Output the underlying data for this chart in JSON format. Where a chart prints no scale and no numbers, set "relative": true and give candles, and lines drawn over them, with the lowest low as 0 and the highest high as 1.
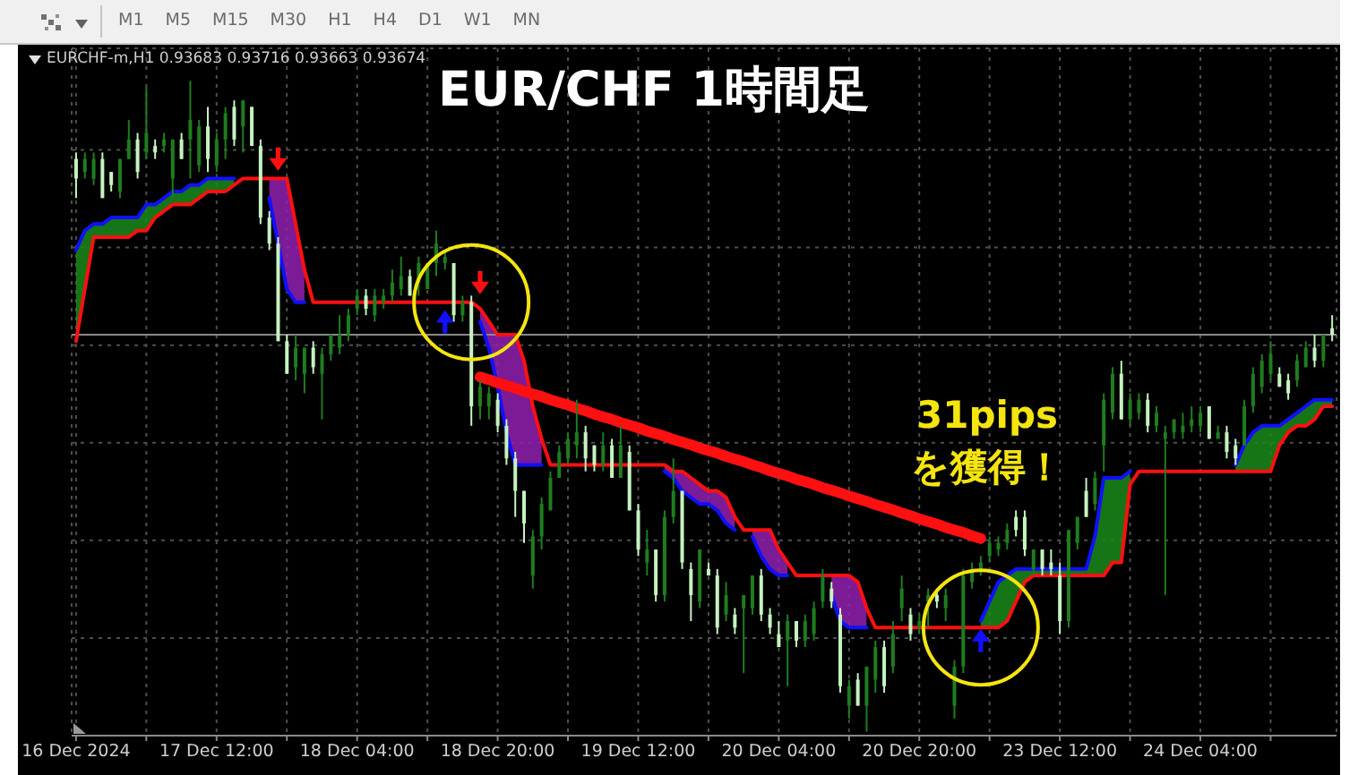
{
  "chart_data": {
    "type": "candlestick",
    "title": "EUR/CHF 1時間足",
    "subtitle": "EURCHF-m,H1 0.93683 0.93716 0.93663 0.93674",
    "relative": true,
    "grid": true,
    "categories": [
      "16 Dec 2024",
      null,
      null,
      null,
      null,
      null,
      null,
      null,
      null,
      null,
      null,
      null,
      null,
      null,
      null,
      null,
      "17 Dec 12:00",
      null,
      null,
      null,
      null,
      null,
      null,
      null,
      null,
      null,
      null,
      null,
      null,
      null,
      null,
      null,
      "18 Dec 04:00",
      null,
      null,
      null,
      null,
      null,
      null,
      null,
      null,
      null,
      null,
      null,
      null,
      null,
      null,
      null,
      "18 Dec 20:00",
      null,
      null,
      null,
      null,
      null,
      null,
      null,
      null,
      null,
      null,
      null,
      null,
      null,
      null,
      null,
      "19 Dec 12:00",
      null,
      null,
      null,
      null,
      null,
      null,
      null,
      null,
      null,
      null,
      null,
      null,
      null,
      null,
      null,
      "20 Dec 04:00",
      null,
      null,
      null,
      null,
      null,
      null,
      null,
      null,
      null,
      null,
      null,
      null,
      null,
      null,
      null,
      "20 Dec 20:00",
      null,
      null,
      null,
      null,
      null,
      null,
      null,
      null,
      null,
      null,
      null,
      null,
      null,
      null,
      null,
      "23 Dec 12:00",
      null,
      null,
      null,
      null,
      null,
      null,
      null,
      null,
      null,
      null,
      null,
      null,
      null,
      null,
      null,
      "24 Dec 04:00",
      null,
      null,
      null,
      null,
      null,
      null,
      null,
      null,
      null,
      null,
      null,
      null,
      null,
      null,
      null
    ],
    "ohlc": [
      [
        0.88,
        0.89,
        0.82,
        0.85
      ],
      [
        0.86,
        0.89,
        0.85,
        0.88
      ],
      [
        0.85,
        0.89,
        0.84,
        0.88
      ],
      [
        0.88,
        0.89,
        0.82,
        0.82
      ],
      [
        0.86,
        0.86,
        0.83,
        0.84
      ],
      [
        0.83,
        0.88,
        0.82,
        0.88
      ],
      [
        0.88,
        0.94,
        0.88,
        0.91
      ],
      [
        0.91,
        0.92,
        0.85,
        0.86
      ],
      [
        0.89,
        0.99,
        0.88,
        0.92
      ],
      [
        0.9,
        0.91,
        0.88,
        0.89
      ],
      [
        0.9,
        0.92,
        0.89,
        0.91
      ],
      [
        0.85,
        0.91,
        0.82,
        0.91
      ],
      [
        0.91,
        0.92,
        0.88,
        0.88
      ],
      [
        0.91,
        1.0,
        0.85,
        0.94
      ],
      [
        0.87,
        0.94,
        0.86,
        0.93
      ],
      [
        0.93,
        0.96,
        0.86,
        0.88
      ],
      [
        0.87,
        0.92,
        0.86,
        0.91
      ],
      [
        0.91,
        0.96,
        0.88,
        0.95
      ],
      [
        0.96,
        0.97,
        0.9,
        0.91
      ],
      [
        0.93,
        0.97,
        0.89,
        0.97
      ],
      [
        0.96,
        0.96,
        0.9,
        0.9
      ],
      [
        0.9,
        0.91,
        0.78,
        0.79
      ],
      [
        0.79,
        0.8,
        0.74,
        0.75
      ],
      [
        0.75,
        0.76,
        0.6,
        0.6
      ],
      [
        0.6,
        0.61,
        0.55,
        0.55
      ],
      [
        0.56,
        0.61,
        0.54,
        0.59
      ],
      [
        0.55,
        0.59,
        0.52,
        0.59
      ],
      [
        0.59,
        0.6,
        0.55,
        0.56
      ],
      [
        0.55,
        0.59,
        0.48,
        0.58
      ],
      [
        0.58,
        0.61,
        0.57,
        0.61
      ],
      [
        0.59,
        0.64,
        0.58,
        0.61
      ],
      [
        0.61,
        0.65,
        0.6,
        0.64
      ],
      [
        0.65,
        0.68,
        0.64,
        0.67
      ],
      [
        0.67,
        0.68,
        0.64,
        0.65
      ],
      [
        0.64,
        0.68,
        0.63,
        0.67
      ],
      [
        0.66,
        0.68,
        0.65,
        0.67
      ],
      [
        0.67,
        0.71,
        0.66,
        0.69
      ],
      [
        0.68,
        0.73,
        0.67,
        0.7
      ],
      [
        0.7,
        0.71,
        0.67,
        0.67
      ],
      [
        0.69,
        0.73,
        0.67,
        0.72
      ],
      [
        0.68,
        0.72,
        0.68,
        0.72
      ],
      [
        0.72,
        0.77,
        0.7,
        0.75
      ],
      [
        0.72,
        0.74,
        0.71,
        0.73
      ],
      [
        0.72,
        0.72,
        0.63,
        0.64
      ],
      [
        0.64,
        0.67,
        0.63,
        0.66
      ],
      [
        0.66,
        0.67,
        0.47,
        0.5
      ],
      [
        0.5,
        0.54,
        0.48,
        0.53
      ],
      [
        0.5,
        0.53,
        0.48,
        0.52
      ],
      [
        0.51,
        0.52,
        0.46,
        0.47
      ],
      [
        0.47,
        0.48,
        0.41,
        0.42
      ],
      [
        0.42,
        0.43,
        0.33,
        0.37
      ],
      [
        0.37,
        0.37,
        0.29,
        0.32
      ],
      [
        0.24,
        0.31,
        0.22,
        0.3
      ],
      [
        0.3,
        0.36,
        0.28,
        0.35
      ],
      [
        0.34,
        0.4,
        0.34,
        0.39
      ],
      [
        0.39,
        0.44,
        0.39,
        0.43
      ],
      [
        0.42,
        0.46,
        0.41,
        0.45
      ],
      [
        0.44,
        0.51,
        0.42,
        0.46
      ],
      [
        0.46,
        0.47,
        0.4,
        0.42
      ],
      [
        0.44,
        0.44,
        0.4,
        0.41
      ],
      [
        0.41,
        0.46,
        0.4,
        0.44
      ],
      [
        0.44,
        0.45,
        0.39,
        0.39
      ],
      [
        0.39,
        0.47,
        0.39,
        0.44
      ],
      [
        0.43,
        0.44,
        0.34,
        0.34
      ],
      [
        0.34,
        0.35,
        0.27,
        0.28
      ],
      [
        0.26,
        0.31,
        0.24,
        0.28
      ],
      [
        0.28,
        0.28,
        0.2,
        0.21
      ],
      [
        0.21,
        0.34,
        0.2,
        0.33
      ],
      [
        0.33,
        0.42,
        0.32,
        0.37
      ],
      [
        0.37,
        0.37,
        0.25,
        0.26
      ],
      [
        0.25,
        0.26,
        0.17,
        0.21
      ],
      [
        0.2,
        0.28,
        0.19,
        0.28
      ],
      [
        0.25,
        0.26,
        0.24,
        0.24
      ],
      [
        0.24,
        0.25,
        0.15,
        0.16
      ],
      [
        0.18,
        0.23,
        0.17,
        0.21
      ],
      [
        0.18,
        0.19,
        0.15,
        0.16
      ],
      [
        0.19,
        0.21,
        0.09,
        0.21
      ],
      [
        0.19,
        0.24,
        0.18,
        0.24
      ],
      [
        0.24,
        0.25,
        0.17,
        0.18
      ],
      [
        0.18,
        0.19,
        0.15,
        0.16
      ],
      [
        0.15,
        0.17,
        0.13,
        0.13
      ],
      [
        0.14,
        0.18,
        0.07,
        0.17
      ],
      [
        0.17,
        0.17,
        0.13,
        0.14
      ],
      [
        0.14,
        0.18,
        0.13,
        0.17
      ],
      [
        0.15,
        0.2,
        0.14,
        0.19
      ],
      [
        0.2,
        0.25,
        0.19,
        0.24
      ],
      [
        0.22,
        0.23,
        0.19,
        0.2
      ],
      [
        0.18,
        0.19,
        0.06,
        0.07
      ],
      [
        0.04,
        0.08,
        0.02,
        0.07
      ],
      [
        0.08,
        0.09,
        0.04,
        0.04
      ],
      [
        0.04,
        0.1,
        0.0,
        0.1
      ],
      [
        0.08,
        0.14,
        0.06,
        0.13
      ],
      [
        0.13,
        0.14,
        0.06,
        0.07
      ],
      [
        0.1,
        0.17,
        0.09,
        0.15
      ],
      [
        0.19,
        0.24,
        0.17,
        0.22
      ],
      [
        0.18,
        0.19,
        0.14,
        0.15
      ],
      [
        0.16,
        0.18,
        0.15,
        0.17
      ],
      [
        0.2,
        0.22,
        0.16,
        0.21
      ],
      [
        0.21,
        0.22,
        0.19,
        0.2
      ],
      [
        0.19,
        0.22,
        0.17,
        0.21
      ],
      [
        0.04,
        0.11,
        0.02,
        0.1
      ],
      [
        0.1,
        0.25,
        0.09,
        0.24
      ],
      [
        0.23,
        0.26,
        0.22,
        0.25
      ],
      [
        0.25,
        0.27,
        0.24,
        0.26
      ],
      [
        0.27,
        0.3,
        0.26,
        0.29
      ],
      [
        0.28,
        0.3,
        0.27,
        0.29
      ],
      [
        0.29,
        0.32,
        0.28,
        0.31
      ],
      [
        0.33,
        0.34,
        0.3,
        0.31
      ],
      [
        0.33,
        0.34,
        0.27,
        0.28
      ],
      [
        0.25,
        0.28,
        0.24,
        0.28
      ],
      [
        0.28,
        0.28,
        0.24,
        0.25
      ],
      [
        0.26,
        0.28,
        0.24,
        0.25
      ],
      [
        0.24,
        0.26,
        0.15,
        0.17
      ],
      [
        0.17,
        0.31,
        0.16,
        0.31
      ],
      [
        0.29,
        0.33,
        0.28,
        0.33
      ],
      [
        0.37,
        0.39,
        0.33,
        0.33
      ],
      [
        0.35,
        0.4,
        0.34,
        0.39
      ],
      [
        0.44,
        0.52,
        0.4,
        0.51
      ],
      [
        0.49,
        0.56,
        0.48,
        0.55
      ],
      [
        0.55,
        0.57,
        0.48,
        0.48
      ],
      [
        0.48,
        0.52,
        0.47,
        0.51
      ],
      [
        0.49,
        0.52,
        0.48,
        0.51
      ],
      [
        0.51,
        0.52,
        0.46,
        0.47
      ],
      [
        0.47,
        0.5,
        0.46,
        0.49
      ],
      [
        0.45,
        0.47,
        0.21,
        0.46
      ],
      [
        0.46,
        0.48,
        0.45,
        0.48
      ],
      [
        0.46,
        0.49,
        0.45,
        0.47
      ],
      [
        0.47,
        0.5,
        0.46,
        0.48
      ],
      [
        0.47,
        0.5,
        0.46,
        0.49
      ],
      [
        0.5,
        0.5,
        0.45,
        0.45
      ],
      [
        0.45,
        0.47,
        0.45,
        0.46
      ],
      [
        0.46,
        0.47,
        0.42,
        0.43
      ],
      [
        0.44,
        0.45,
        0.41,
        0.42
      ],
      [
        0.44,
        0.51,
        0.44,
        0.5
      ],
      [
        0.5,
        0.56,
        0.49,
        0.55
      ],
      [
        0.53,
        0.58,
        0.52,
        0.57
      ],
      [
        0.55,
        0.6,
        0.54,
        0.58
      ],
      [
        0.55,
        0.56,
        0.53,
        0.53
      ],
      [
        0.54,
        0.55,
        0.51,
        0.52
      ],
      [
        0.54,
        0.58,
        0.53,
        0.57
      ],
      [
        0.56,
        0.6,
        0.56,
        0.59
      ],
      [
        0.59,
        0.61,
        0.56,
        0.57
      ],
      [
        0.57,
        0.61,
        0.56,
        0.61
      ],
      [
        0.62,
        0.64,
        0.6,
        0.61
      ]
    ],
    "colors": [
      "#c6f2c0",
      "#1e7d1e",
      "#1e7d1e",
      "#c6f2c0",
      "#c6f2c0",
      "#1e7d1e",
      "#1e7d1e",
      "#c6f2c0",
      "#1e7d1e",
      "#c6f2c0",
      "#1e7d1e",
      "#1e7d1e",
      "#c6f2c0",
      "#1e7d1e",
      "#1e7d1e",
      "#c6f2c0",
      "#1e7d1e",
      "#1e7d1e",
      "#c6f2c0",
      "#1e7d1e",
      "#c6f2c0",
      "#c6f2c0",
      "#c6f2c0",
      "#c6f2c0",
      "#c6f2c0",
      "#1e7d1e",
      "#1e7d1e",
      "#c6f2c0",
      "#1e7d1e",
      "#1e7d1e",
      "#1e7d1e",
      "#1e7d1e",
      "#1e7d1e",
      "#c6f2c0",
      "#1e7d1e",
      "#1e7d1e",
      "#1e7d1e",
      "#1e7d1e",
      "#c6f2c0",
      "#1e7d1e",
      "#1e7d1e",
      "#1e7d1e",
      "#1e7d1e",
      "#c6f2c0",
      "#1e7d1e",
      "#c6f2c0",
      "#1e7d1e",
      "#1e7d1e",
      "#c6f2c0",
      "#c6f2c0",
      "#c6f2c0",
      "#c6f2c0",
      "#1e7d1e",
      "#1e7d1e",
      "#1e7d1e",
      "#1e7d1e",
      "#1e7d1e",
      "#1e7d1e",
      "#c6f2c0",
      "#c6f2c0",
      "#1e7d1e",
      "#c6f2c0",
      "#1e7d1e",
      "#c6f2c0",
      "#c6f2c0",
      "#1e7d1e",
      "#c6f2c0",
      "#1e7d1e",
      "#1e7d1e",
      "#c6f2c0",
      "#c6f2c0",
      "#1e7d1e",
      "#c6f2c0",
      "#c6f2c0",
      "#1e7d1e",
      "#c6f2c0",
      "#1e7d1e",
      "#1e7d1e",
      "#c6f2c0",
      "#c6f2c0",
      "#c6f2c0",
      "#1e7d1e",
      "#c6f2c0",
      "#1e7d1e",
      "#1e7d1e",
      "#1e7d1e",
      "#c6f2c0",
      "#c6f2c0",
      "#1e7d1e",
      "#c6f2c0",
      "#1e7d1e",
      "#1e7d1e",
      "#c6f2c0",
      "#1e7d1e",
      "#1e7d1e",
      "#c6f2c0",
      "#1e7d1e",
      "#1e7d1e",
      "#c6f2c0",
      "#1e7d1e",
      "#1e7d1e",
      "#1e7d1e",
      "#1e7d1e",
      "#1e7d1e",
      "#1e7d1e",
      "#1e7d1e",
      "#1e7d1e",
      "#c6f2c0",
      "#c6f2c0",
      "#1e7d1e",
      "#c6f2c0",
      "#c6f2c0",
      "#c6f2c0",
      "#1e7d1e",
      "#1e7d1e",
      "#c6f2c0",
      "#1e7d1e",
      "#1e7d1e",
      "#1e7d1e",
      "#c6f2c0",
      "#1e7d1e",
      "#1e7d1e",
      "#c6f2c0",
      "#1e7d1e",
      "#1e7d1e",
      "#1e7d1e",
      "#1e7d1e",
      "#1e7d1e",
      "#1e7d1e",
      "#c6f2c0",
      "#1e7d1e",
      "#c6f2c0",
      "#c6f2c0",
      "#1e7d1e",
      "#1e7d1e",
      "#1e7d1e",
      "#1e7d1e",
      "#c6f2c0",
      "#c6f2c0",
      "#1e7d1e",
      "#1e7d1e",
      "#c6f2c0",
      "#1e7d1e",
      "#c6f2c0"
    ],
    "series": [
      {
        "type": "line",
        "color": "#1010ff",
        "values": [
          0.74,
          0.77,
          0.78,
          0.78,
          0.79,
          0.79,
          0.79,
          0.79,
          0.81,
          0.81,
          0.82,
          0.83,
          0.83,
          0.84,
          0.84,
          0.85,
          0.85,
          0.85,
          0.85,
          null,
          null,
          null,
          0.82,
          0.75,
          0.68,
          0.66,
          0.66,
          null,
          null,
          null,
          null,
          null,
          null,
          null,
          null,
          null,
          null,
          null,
          null,
          null,
          null,
          null,
          null,
          null,
          null,
          null,
          0.63,
          0.59,
          0.53,
          0.46,
          0.41,
          0.41,
          0.41,
          0.41,
          null,
          null,
          null,
          null,
          null,
          null,
          null,
          null,
          null,
          null,
          null,
          null,
          null,
          0.4,
          0.39,
          0.37,
          0.36,
          0.35,
          0.35,
          0.34,
          0.32,
          0.31,
          null,
          0.3,
          0.27,
          0.25,
          0.24,
          0.24,
          null,
          null,
          null,
          null,
          0.21,
          0.17,
          0.16,
          0.16,
          0.16,
          null,
          null,
          null,
          null,
          null,
          null,
          null,
          null,
          null,
          null,
          null,
          null,
          0.17,
          0.2,
          0.23,
          0.24,
          0.25,
          0.25,
          0.25,
          0.25,
          0.25,
          0.25,
          0.25,
          0.25,
          0.25,
          0.3,
          0.39,
          0.39,
          0.39,
          0.4,
          null,
          null,
          null,
          null,
          null,
          null,
          null,
          null,
          null,
          null,
          null,
          0.41,
          0.44,
          0.46,
          0.47,
          0.47,
          0.47,
          0.48,
          0.49,
          0.5,
          0.51,
          0.51,
          0.51
        ]
      },
      {
        "type": "area",
        "color": "#9020b0",
        "values": [
          null,
          null,
          null,
          null,
          null,
          null,
          null,
          null,
          null,
          null,
          null,
          null,
          null,
          null,
          null,
          null,
          null,
          null,
          null,
          null,
          null,
          null,
          0.85,
          0.85,
          0.85,
          0.78,
          0.71,
          null,
          null,
          null,
          null,
          null,
          null,
          null,
          null,
          null,
          null,
          null,
          null,
          null,
          null,
          null,
          null,
          null,
          null,
          null,
          0.65,
          0.63,
          0.61,
          0.61,
          0.61,
          0.57,
          0.5,
          0.45,
          null,
          null,
          null,
          null,
          null,
          null,
          null,
          null,
          null,
          null,
          null,
          null,
          null,
          0.41,
          0.4,
          0.4,
          0.39,
          0.38,
          0.37,
          0.37,
          0.36,
          0.33,
          null,
          0.31,
          0.31,
          0.31,
          0.28,
          0.26,
          null,
          null,
          null,
          null,
          0.24,
          0.24,
          0.24,
          0.23,
          0.19,
          null,
          null,
          null,
          null,
          null,
          null,
          null,
          null,
          null,
          null,
          null,
          null,
          null,
          null,
          null,
          null,
          null,
          null,
          null,
          null,
          null,
          null,
          null,
          null,
          null,
          null,
          null,
          null,
          null,
          null,
          null,
          null,
          null,
          null,
          null,
          null,
          null,
          null,
          null,
          null,
          null,
          null,
          null,
          null,
          null,
          null,
          null,
          null,
          null,
          null,
          null,
          null,
          null
        ]
      },
      {
        "type": "line",
        "color": "#ff1010",
        "values": [
          0.6,
          0.68,
          0.76,
          0.76,
          0.76,
          0.76,
          0.76,
          0.77,
          0.77,
          0.79,
          0.8,
          0.81,
          0.81,
          0.81,
          0.82,
          0.83,
          0.83,
          0.83,
          0.84,
          0.85,
          0.85,
          0.85,
          0.85,
          0.85,
          0.85,
          0.78,
          0.71,
          0.66,
          0.66,
          0.66,
          0.66,
          0.66,
          0.66,
          0.66,
          0.66,
          0.66,
          0.66,
          0.66,
          0.66,
          0.66,
          0.66,
          0.66,
          0.66,
          0.66,
          0.66,
          0.66,
          0.65,
          0.63,
          0.61,
          0.61,
          0.61,
          0.57,
          0.5,
          0.45,
          0.41,
          0.41,
          0.41,
          0.41,
          0.41,
          0.41,
          0.41,
          0.41,
          0.41,
          0.41,
          0.41,
          0.41,
          0.41,
          0.41,
          0.4,
          0.4,
          0.39,
          0.38,
          0.37,
          0.37,
          0.36,
          0.33,
          0.31,
          0.31,
          0.31,
          0.31,
          0.28,
          0.26,
          0.24,
          0.24,
          0.24,
          0.24,
          0.24,
          0.24,
          0.24,
          0.23,
          0.19,
          0.16,
          0.16,
          0.16,
          0.16,
          0.16,
          0.16,
          0.16,
          0.16,
          0.16,
          0.16,
          0.16,
          0.16,
          0.16,
          0.16,
          0.16,
          0.17,
          0.2,
          0.23,
          0.24,
          0.24,
          0.24,
          0.24,
          0.24,
          0.24,
          0.24,
          0.24,
          0.24,
          0.26,
          0.26,
          0.38,
          0.4,
          0.4,
          0.4,
          0.4,
          0.4,
          0.4,
          0.4,
          0.4,
          0.4,
          0.4,
          0.4,
          0.4,
          0.4,
          0.4,
          0.4,
          0.4,
          0.44,
          0.46,
          0.47,
          0.47,
          0.48,
          0.5,
          0.5
        ]
      },
      {
        "type": "area",
        "color": "#1a8a1a",
        "values": [
          0.74,
          0.77,
          0.78,
          0.78,
          0.79,
          0.79,
          0.79,
          0.79,
          0.81,
          0.81,
          0.82,
          0.83,
          0.83,
          0.84,
          0.84,
          0.85,
          0.85,
          0.85,
          0.85,
          null,
          null,
          null,
          null,
          null,
          null,
          null,
          null,
          null,
          null,
          null,
          null,
          null,
          null,
          null,
          null,
          null,
          null,
          null,
          null,
          null,
          null,
          null,
          null,
          null,
          null,
          null,
          null,
          null,
          null,
          null,
          null,
          null,
          null,
          null,
          null,
          null,
          null,
          null,
          null,
          null,
          null,
          null,
          null,
          null,
          null,
          null,
          null,
          null,
          null,
          null,
          null,
          null,
          null,
          null,
          null,
          null,
          null,
          null,
          null,
          null,
          null,
          null,
          null,
          null,
          null,
          null,
          null,
          null,
          null,
          null,
          null,
          null,
          null,
          null,
          null,
          null,
          null,
          null,
          null,
          null,
          null,
          null,
          null,
          0.17,
          0.2,
          0.23,
          0.24,
          0.25,
          0.25,
          0.25,
          0.25,
          0.25,
          0.25,
          0.25,
          0.25,
          0.25,
          0.3,
          0.39,
          0.39,
          0.39,
          0.4,
          null,
          null,
          null,
          null,
          null,
          null,
          null,
          null,
          null,
          null,
          null,
          0.41,
          0.44,
          0.46,
          0.47,
          0.47,
          0.47,
          0.48,
          0.49,
          0.5,
          0.51,
          0.51,
          0.51
        ]
      },
      {
        "type": "line",
        "color": "#ff1010",
        "values": [
          null,
          null,
          null,
          null,
          null,
          null,
          null,
          null,
          null,
          null,
          null,
          null,
          null,
          null,
          null,
          null,
          null,
          null,
          null,
          null,
          null,
          null,
          null,
          null,
          null,
          null,
          null,
          null,
          null,
          null,
          null,
          null,
          null,
          null,
          null,
          null,
          null,
          null,
          null,
          null,
          null,
          null,
          null,
          null,
          null,
          null,
          0.545,
          0.541,
          0.536,
          0.532,
          0.528,
          0.523,
          0.519,
          0.515,
          0.51,
          0.506,
          0.502,
          0.497,
          0.493,
          0.488,
          0.484,
          0.48,
          0.475,
          0.471,
          0.467,
          0.462,
          0.458,
          0.454,
          0.449,
          0.445,
          0.441,
          0.436,
          0.432,
          0.428,
          0.423,
          0.419,
          0.415,
          0.41,
          0.406,
          0.401,
          0.397,
          0.393,
          0.388,
          0.384,
          0.38,
          0.375,
          0.371,
          0.367,
          0.362,
          0.358,
          0.354,
          0.349,
          0.345,
          0.341,
          0.336,
          0.332,
          0.327,
          0.323,
          0.319,
          0.314,
          0.31,
          0.306,
          0.301,
          0.297,
          null,
          null,
          null,
          null,
          null,
          null,
          null,
          null,
          null,
          null,
          null,
          null,
          null,
          null,
          null,
          null,
          null,
          null,
          null,
          null,
          null,
          null,
          null,
          null,
          null,
          null,
          null,
          null,
          null,
          null,
          null,
          null,
          null,
          null,
          null,
          null,
          null,
          null,
          null,
          null
        ]
      },
      {
        "type": "scatter",
        "color": "#ff1010",
        "marker": "triangle",
        "values": [
          null,
          null,
          null,
          null,
          null,
          null,
          null,
          null,
          null,
          null,
          null,
          null,
          null,
          null,
          null,
          null,
          null,
          null,
          null,
          null,
          null,
          null,
          null,
          0.88,
          null,
          null,
          null,
          null,
          null,
          null,
          null,
          null,
          null,
          null,
          null,
          null,
          null,
          null,
          null,
          null,
          null,
          null,
          null,
          null,
          null,
          null,
          0.69,
          null,
          null,
          null,
          null,
          null,
          null,
          null,
          null,
          null,
          null,
          null,
          null,
          null,
          null,
          null,
          null,
          null,
          null,
          null,
          null,
          null,
          null,
          null,
          null,
          null,
          null,
          null,
          null,
          null,
          null,
          null,
          null,
          null,
          null,
          null,
          null,
          null,
          null,
          null,
          null,
          null,
          null,
          null,
          null,
          null,
          null,
          null,
          null,
          null,
          null,
          null,
          null,
          null,
          null,
          null,
          null,
          null,
          null,
          null,
          null,
          null,
          null,
          null,
          null,
          null,
          null,
          null,
          null,
          null,
          null,
          null,
          null,
          null,
          null,
          null,
          null,
          null,
          null,
          null,
          null,
          null,
          null,
          null,
          null,
          null,
          null,
          null,
          null,
          null,
          null,
          null,
          null,
          null,
          null,
          null,
          null,
          null
        ]
      },
      {
        "type": "scatter",
        "color": "#1010ff",
        "marker": "triangle",
        "values": [
          null,
          null,
          null,
          null,
          null,
          null,
          null,
          null,
          null,
          null,
          null,
          null,
          null,
          null,
          null,
          null,
          null,
          null,
          null,
          null,
          null,
          null,
          null,
          null,
          null,
          null,
          null,
          null,
          null,
          null,
          null,
          null,
          null,
          null,
          null,
          null,
          null,
          null,
          null,
          null,
          null,
          null,
          0.63,
          null,
          null,
          null,
          null,
          null,
          null,
          null,
          null,
          null,
          null,
          null,
          null,
          null,
          null,
          null,
          null,
          null,
          null,
          null,
          null,
          null,
          null,
          null,
          null,
          null,
          null,
          null,
          null,
          null,
          null,
          null,
          null,
          null,
          null,
          null,
          null,
          null,
          null,
          null,
          null,
          null,
          null,
          null,
          null,
          null,
          null,
          null,
          null,
          null,
          null,
          null,
          null,
          null,
          null,
          null,
          null,
          null,
          null,
          null,
          null,
          0.14,
          null,
          null,
          null,
          null,
          null,
          null,
          null,
          null,
          null,
          null,
          null,
          null,
          null,
          null,
          null,
          null,
          null,
          null,
          null,
          null,
          null,
          null,
          null,
          null,
          null,
          null,
          null,
          null,
          null,
          null,
          null,
          null,
          null,
          null,
          null,
          null,
          null,
          null,
          null,
          null
        ]
      },
      {
        "type": "scatter",
        "color": "#f5e50f",
        "marker": "circle",
        "values": [
          null,
          null,
          null,
          null,
          null,
          null,
          null,
          null,
          null,
          null,
          null,
          null,
          null,
          null,
          null,
          null,
          null,
          null,
          null,
          null,
          null,
          null,
          null,
          null,
          null,
          null,
          null,
          null,
          null,
          null,
          null,
          null,
          null,
          null,
          null,
          null,
          null,
          null,
          null,
          null,
          null,
          null,
          null,
          null,
          null,
          0.66,
          null,
          null,
          null,
          null,
          null,
          null,
          null,
          null,
          null,
          null,
          null,
          null,
          null,
          null,
          null,
          null,
          null,
          null,
          null,
          null,
          null,
          null,
          null,
          null,
          null,
          null,
          null,
          null,
          null,
          null,
          null,
          null,
          null,
          null,
          null,
          null,
          null,
          null,
          null,
          null,
          null,
          null,
          null,
          null,
          null,
          null,
          null,
          null,
          null,
          null,
          null,
          null,
          null,
          null,
          null,
          null,
          null,
          0.16,
          null,
          null,
          null,
          null,
          null,
          null,
          null,
          null,
          null,
          null,
          null,
          null,
          null,
          null,
          null,
          null,
          null,
          null,
          null,
          null,
          null,
          null,
          null,
          null,
          null,
          null,
          null,
          null,
          null,
          null,
          null,
          null,
          null,
          null,
          null,
          null,
          null,
          null,
          null,
          null
        ]
      }
    ],
    "ref_lines": [
      {
        "axis": "y",
        "value": 0.61,
        "color": "#8a8a8a"
      }
    ],
    "annotations": [
      "31pips\nを獲得！",
      "M1",
      "M5",
      "M15",
      "M30",
      "H1",
      "H4",
      "D1",
      "W1",
      "MN"
    ]
  }
}
